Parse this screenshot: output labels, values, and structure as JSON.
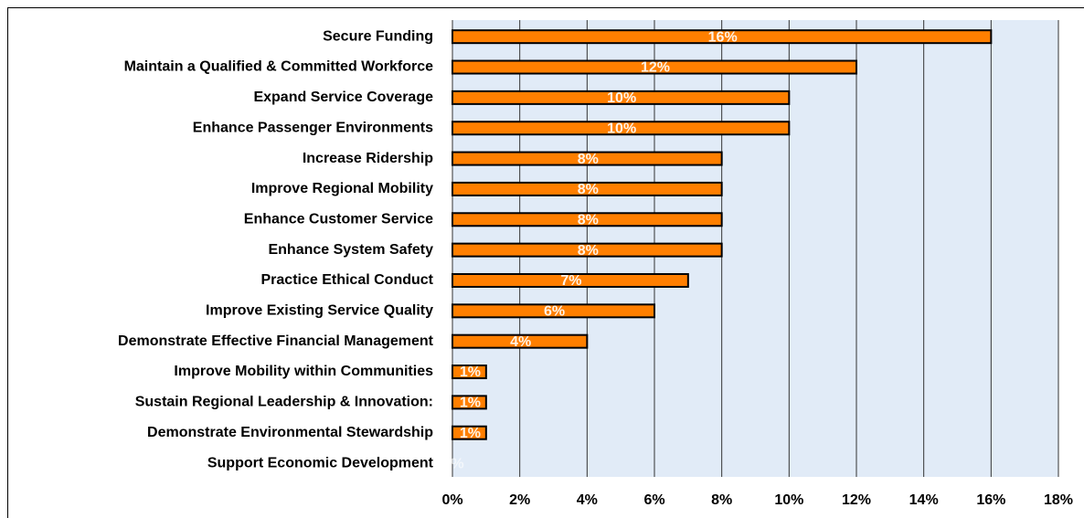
{
  "chart_data": {
    "type": "hbar",
    "categories": [
      "Secure Funding",
      "Maintain a Qualified & Committed Workforce",
      "Expand Service Coverage",
      "Enhance Passenger Environments",
      "Increase Ridership",
      "Improve Regional Mobility",
      "Enhance Customer Service",
      "Enhance System Safety",
      "Practice Ethical Conduct",
      "Improve Existing Service Quality",
      "Demonstrate Effective Financial Management",
      "Improve Mobility within Communities",
      "Sustain Regional Leadership & Innovation:",
      "Demonstrate Environmental Stewardship",
      "Support Economic Development"
    ],
    "values": [
      16,
      12,
      10,
      10,
      8,
      8,
      8,
      8,
      7,
      6,
      4,
      1,
      1,
      1,
      0
    ],
    "value_labels": [
      "16%",
      "12%",
      "10%",
      "10%",
      "8%",
      "8%",
      "8%",
      "8%",
      "7%",
      "6%",
      "4%",
      "1%",
      "1%",
      "1%",
      "0%"
    ],
    "color": "#ff7f00",
    "xlim": [
      0,
      18
    ],
    "xticks": [
      {
        "value": 0,
        "label": "0%"
      },
      {
        "value": 2,
        "label": "2%"
      },
      {
        "value": 4,
        "label": "4%"
      },
      {
        "value": 6,
        "label": "6%"
      },
      {
        "value": 8,
        "label": "8%"
      },
      {
        "value": 10,
        "label": "10%"
      },
      {
        "value": 12,
        "label": "12%"
      },
      {
        "value": 14,
        "label": "14%"
      },
      {
        "value": 16,
        "label": "16%"
      },
      {
        "value": 18,
        "label": "18%"
      }
    ],
    "grid": true
  }
}
